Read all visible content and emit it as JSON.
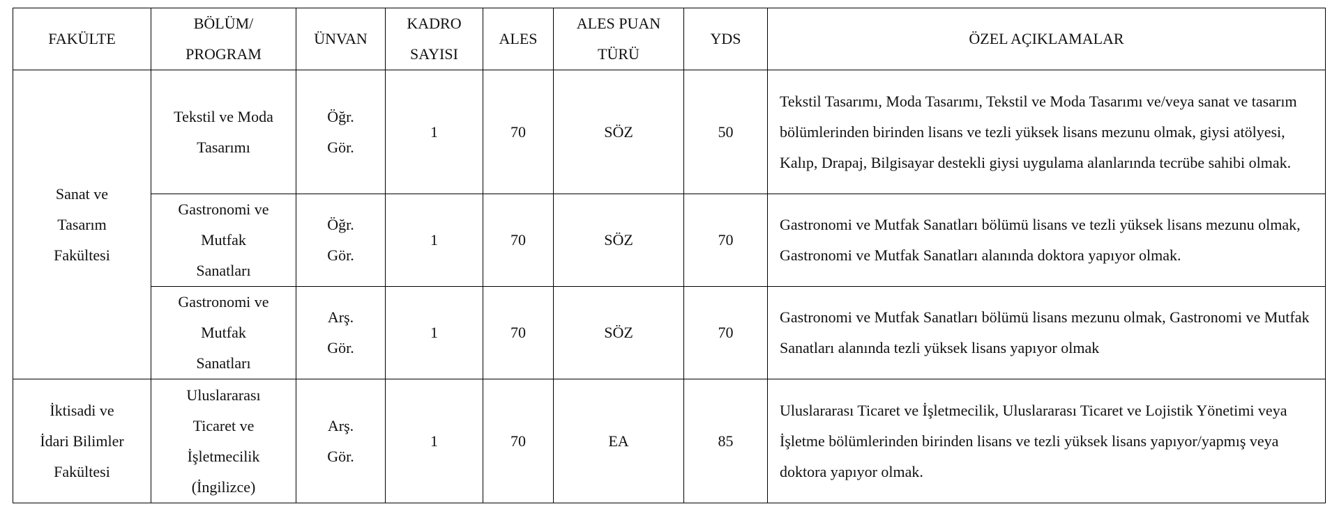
{
  "headers": [
    "FAKÜLTE",
    "BÖLÜM/\nPROGRAM",
    "ÜNVAN",
    "KADRO\nSAYISI",
    "ALES",
    "ALES PUAN\nTÜRÜ",
    "YDS",
    "ÖZEL AÇIKLAMALAR"
  ],
  "faculties": [
    "Sanat ve\nTasarım\nFakültesi",
    "İktisadi ve\nİdari Bilimler\nFakültesi"
  ],
  "rows": [
    {
      "program": "Tekstil ve Moda\nTasarımı",
      "title": "Öğr.\nGör.",
      "count": "1",
      "ales": "70",
      "ales_type": "SÖZ",
      "yds": "50",
      "notes": "Tekstil Tasarımı, Moda Tasarımı, Tekstil ve Moda Tasarımı ve/veya sanat ve tasarım bölümlerinden birinden lisans ve tezli yüksek lisans mezunu olmak, giysi atölyesi, Kalıp, Drapaj, Bilgisayar destekli giysi uygulama alanlarında tecrübe sahibi olmak."
    },
    {
      "program": "Gastronomi ve\nMutfak\nSanatları",
      "title": "Öğr.\nGör.",
      "count": "1",
      "ales": "70",
      "ales_type": "SÖZ",
      "yds": "70",
      "notes": "Gastronomi ve Mutfak Sanatları bölümü lisans ve tezli yüksek lisans mezunu olmak, Gastronomi ve Mutfak Sanatları alanında doktora yapıyor olmak."
    },
    {
      "program": "Gastronomi ve\nMutfak\nSanatları",
      "title": "Arş.\nGör.",
      "count": "1",
      "ales": "70",
      "ales_type": "SÖZ",
      "yds": "70",
      "notes": "Gastronomi ve Mutfak Sanatları bölümü lisans mezunu olmak, Gastronomi ve Mutfak Sanatları alanında tezli yüksek lisans yapıyor olmak"
    },
    {
      "program": "Uluslararası\nTicaret ve\nİşletmecilik\n(İngilizce)",
      "title": "Arş.\nGör.",
      "count": "1",
      "ales": "70",
      "ales_type": "EA",
      "yds": "85",
      "notes": "Uluslararası Ticaret ve İşletmecilik, Uluslararası Ticaret ve Lojistik Yönetimi veya İşletme bölümlerinden birinden lisans ve tezli yüksek lisans yapıyor/yapmış veya doktora yapıyor olmak."
    }
  ]
}
